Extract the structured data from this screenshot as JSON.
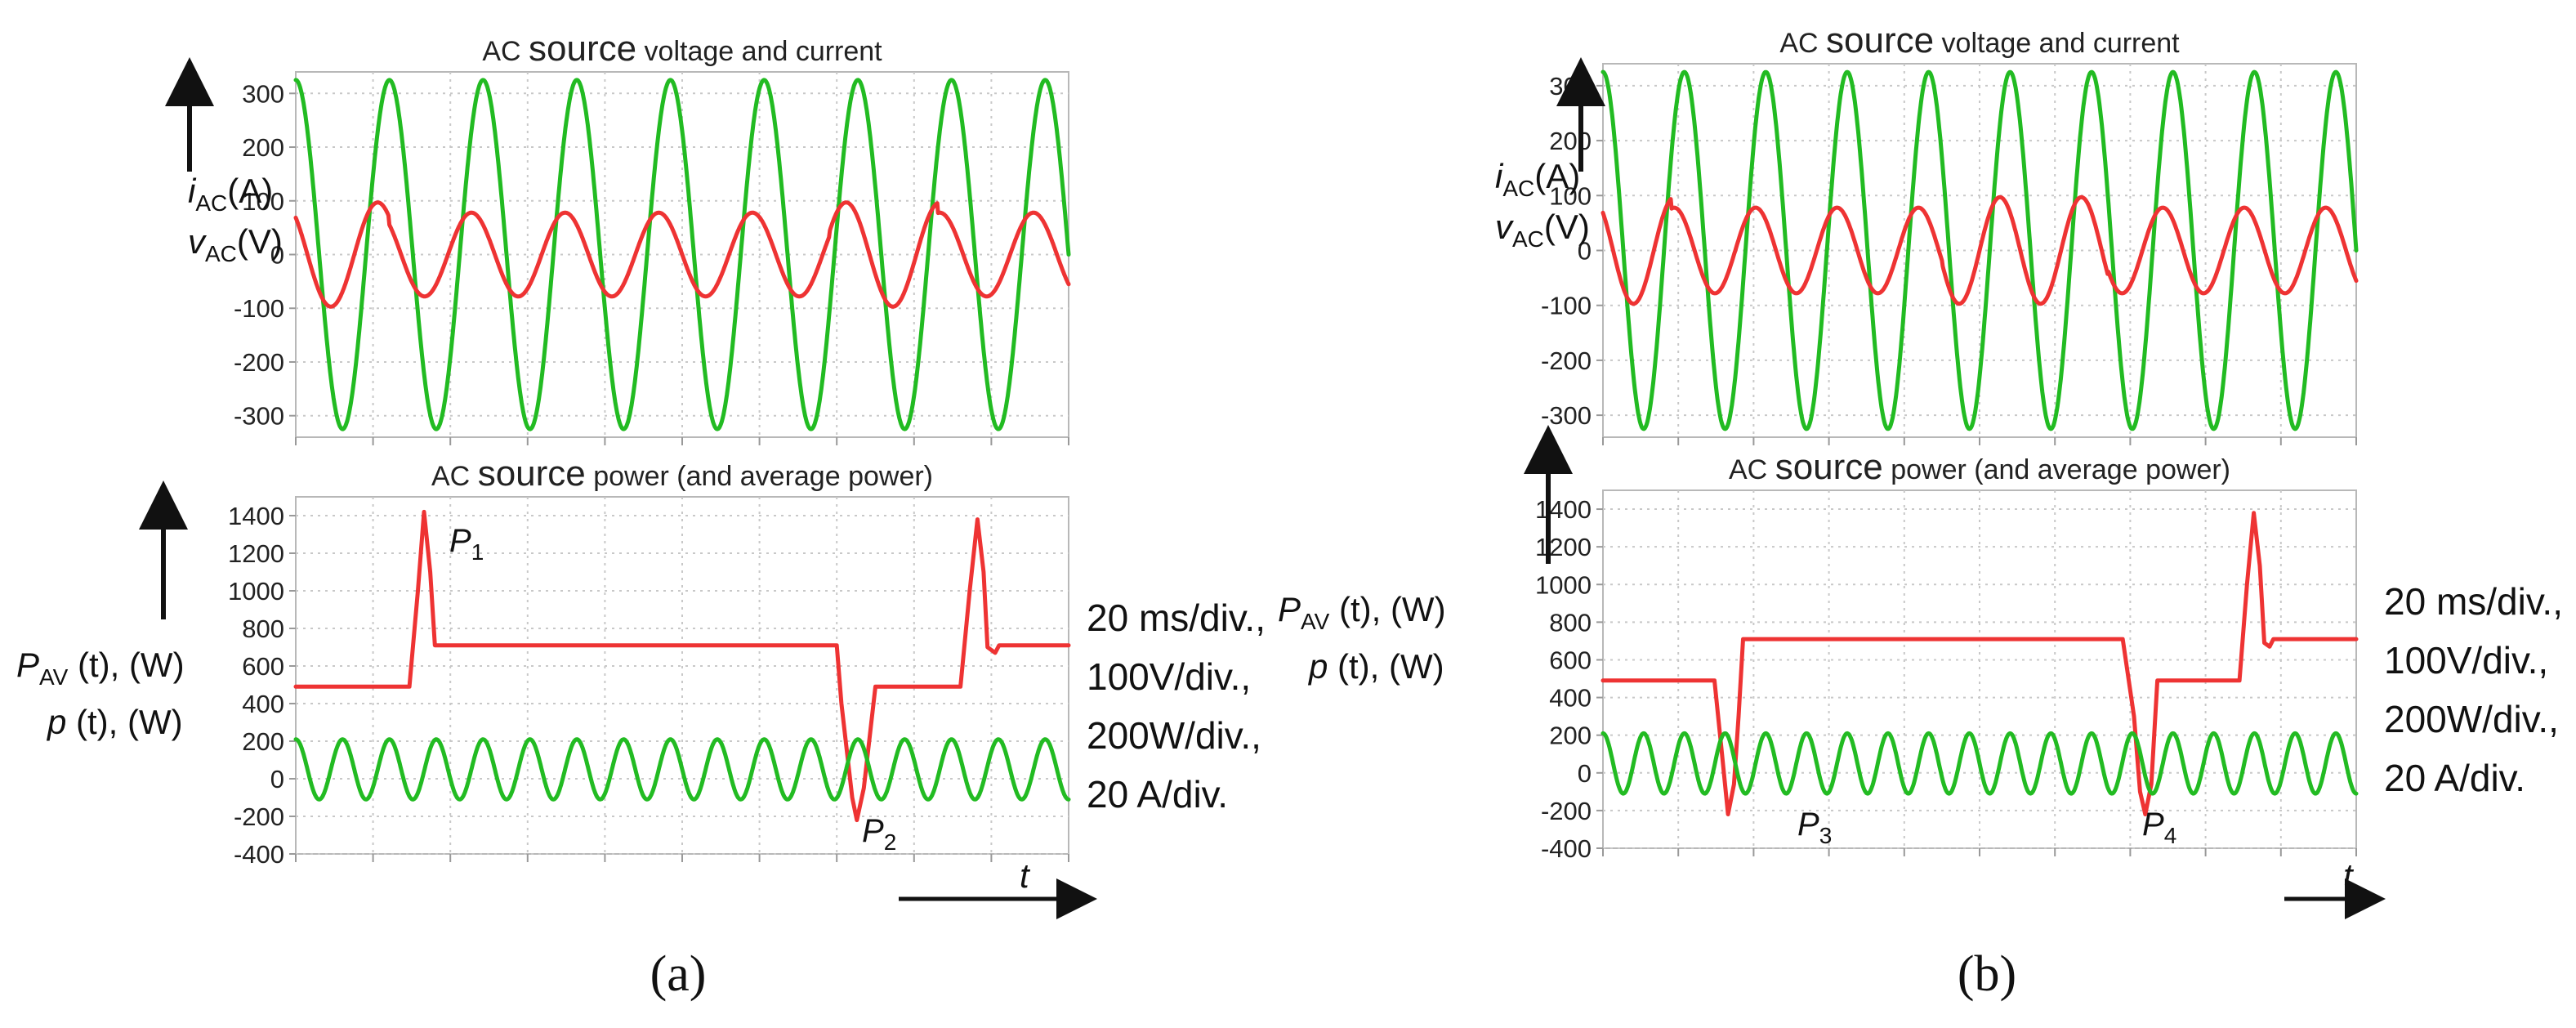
{
  "chart_data": [
    {
      "panel": "(a)",
      "type": "line",
      "title": {
        "pre": "AC ",
        "big": "source",
        "post": " voltage and current"
      },
      "y_label_lines": [
        {
          "var": "i",
          "sub": "AC",
          "unit": "(A)"
        },
        {
          "var": "v",
          "sub": "AC",
          "unit": "(V)"
        }
      ],
      "yticks": [
        300,
        200,
        100,
        0,
        -100,
        -200,
        -300
      ],
      "ylim": [
        -340,
        340
      ],
      "grid": true,
      "series": [
        {
          "role": "voltage",
          "color": "#22bb22",
          "amplitude": 325,
          "cycles": 8.25,
          "phase_deg": 90
        },
        {
          "role": "current",
          "color": "#ee3333",
          "cycles": 8.25,
          "phase_deg": 135,
          "amplitude_segments": [
            {
              "x_end": 0.12,
              "amplitude": 97
            },
            {
              "x_end": 0.69,
              "amplitude": 78
            },
            {
              "x_end": 0.83,
              "amplitude": 97
            },
            {
              "x_end": 1.0,
              "amplitude": 78
            }
          ]
        }
      ]
    },
    {
      "panel": "(a)",
      "type": "line",
      "title": {
        "pre": "AC ",
        "big": "source",
        "post": " power (and average power)"
      },
      "yticks": [
        1400,
        1200,
        1000,
        800,
        600,
        400,
        200,
        0,
        -200,
        -400
      ],
      "ylim": [
        -400,
        1500
      ],
      "grid": true,
      "series": [
        {
          "role": "average_power",
          "color": "#ee3333",
          "points": [
            [
              0,
              490
            ],
            [
              0.078,
              490
            ],
            [
              0.147,
              490
            ],
            [
              0.158,
              1000
            ],
            [
              0.166,
              1420
            ],
            [
              0.174,
              1100
            ],
            [
              0.18,
              710
            ],
            [
              0.7,
              710
            ],
            [
              0.706,
              400
            ],
            [
              0.72,
              -100
            ],
            [
              0.726,
              -220
            ],
            [
              0.735,
              -50
            ],
            [
              0.75,
              490
            ],
            [
              0.86,
              490
            ],
            [
              0.872,
              1000
            ],
            [
              0.882,
              1380
            ],
            [
              0.89,
              1100
            ],
            [
              0.895,
              700
            ],
            [
              0.905,
              670
            ],
            [
              0.91,
              710
            ],
            [
              1.0,
              710
            ]
          ]
        },
        {
          "role": "instantaneous_power",
          "color": "#22bb22",
          "offset": 50,
          "amplitude": 160,
          "cycles": 16.5,
          "phase_deg": 90
        }
      ],
      "annotations": [
        {
          "id": "p1",
          "sym": "P",
          "sub": "1"
        },
        {
          "id": "p2",
          "sym": "P",
          "sub": "2"
        }
      ]
    },
    {
      "panel": "(b)",
      "type": "line",
      "title": {
        "pre": "AC ",
        "big": "source",
        "post": " voltage and current"
      },
      "y_label_lines": [
        {
          "var": "i",
          "sub": "AC",
          "unit": "(A)"
        },
        {
          "var": "v",
          "sub": "AC",
          "unit": "(V)"
        }
      ],
      "yticks": [
        300,
        200,
        100,
        0,
        -100,
        -200,
        -300
      ],
      "ylim": [
        -340,
        340
      ],
      "grid": true,
      "series": [
        {
          "role": "voltage",
          "color": "#22bb22",
          "amplitude": 325,
          "cycles": 9.25,
          "phase_deg": 90
        },
        {
          "role": "current",
          "color": "#ee3333",
          "cycles": 9.25,
          "phase_deg": 135,
          "amplitude_segments": [
            {
              "x_end": 0.09,
              "amplitude": 97
            },
            {
              "x_end": 0.45,
              "amplitude": 78
            },
            {
              "x_end": 0.67,
              "amplitude": 97
            },
            {
              "x_end": 1.0,
              "amplitude": 78
            }
          ]
        }
      ]
    },
    {
      "panel": "(b)",
      "type": "line",
      "title": {
        "pre": "AC ",
        "big": "source",
        "post": " power (and average power)"
      },
      "yticks": [
        1400,
        1200,
        1000,
        800,
        600,
        400,
        200,
        0,
        -200,
        -400
      ],
      "ylim": [
        -400,
        1500
      ],
      "grid": true,
      "series": [
        {
          "role": "average_power",
          "color": "#ee3333",
          "points": [
            [
              0,
              490
            ],
            [
              0.148,
              490
            ],
            [
              0.158,
              100
            ],
            [
              0.166,
              -220
            ],
            [
              0.174,
              -60
            ],
            [
              0.18,
              300
            ],
            [
              0.186,
              710
            ],
            [
              0.69,
              710
            ],
            [
              0.705,
              300
            ],
            [
              0.713,
              -100
            ],
            [
              0.72,
              -220
            ],
            [
              0.728,
              -60
            ],
            [
              0.736,
              490
            ],
            [
              0.845,
              490
            ],
            [
              0.855,
              1000
            ],
            [
              0.864,
              1380
            ],
            [
              0.872,
              1100
            ],
            [
              0.878,
              690
            ],
            [
              0.885,
              670
            ],
            [
              0.89,
              710
            ],
            [
              1.0,
              710
            ]
          ]
        },
        {
          "role": "instantaneous_power",
          "color": "#22bb22",
          "offset": 50,
          "amplitude": 160,
          "cycles": 18.5,
          "phase_deg": 90
        }
      ],
      "annotations": [
        {
          "id": "p3",
          "sym": "P",
          "sub": "3"
        },
        {
          "id": "p4",
          "sym": "P",
          "sub": "4"
        }
      ]
    }
  ],
  "power_label_lines": [
    {
      "sym": "P",
      "sub": "AV",
      "rest": " (t), (W)"
    },
    {
      "sym": "p",
      "sub": "",
      "rest": " (t), (W)"
    }
  ],
  "scale_notes": [
    "20 ms/div.,",
    "100V/div.,",
    "200W/div.,",
    "20 A/div."
  ],
  "time_axis_symbol": "t",
  "panel_labels": [
    "(a)",
    "(b)"
  ]
}
